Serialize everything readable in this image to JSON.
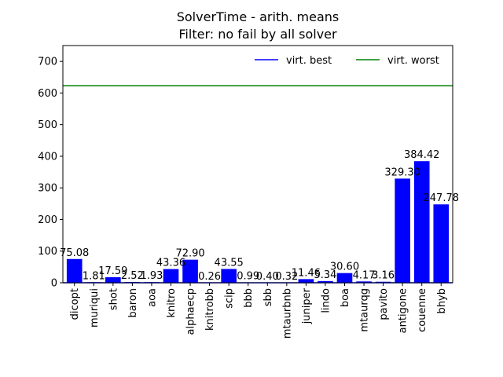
{
  "chart_data": {
    "type": "bar",
    "title": "SolverTime - arith. means",
    "subtitle": "Filter: no fail by all solver",
    "xlabel": "",
    "ylabel": "",
    "ylim": [
      0,
      750
    ],
    "yticks": [
      0,
      100,
      200,
      300,
      400,
      500,
      600,
      700
    ],
    "grid": false,
    "legend_position": "top-right",
    "categories": [
      "dicopt",
      "muriqui",
      "shot",
      "baron",
      "aoa",
      "knitro",
      "alphaecp",
      "knitrobb",
      "scip",
      "bbb",
      "sbb",
      "mtaurbnb",
      "juniper",
      "lindo",
      "boa",
      "mtaurqg",
      "pavito",
      "antigone",
      "couenne",
      "bhyb"
    ],
    "values": [
      75.08,
      1.81,
      17.59,
      2.52,
      1.93,
      43.36,
      72.9,
      0.26,
      43.55,
      0.99,
      0.4,
      0.32,
      11.46,
      5.34,
      30.6,
      4.17,
      3.16,
      329.3,
      384.42,
      247.78
    ],
    "value_labels": [
      "75.08",
      "1.81",
      "17.59",
      "2.52",
      "1.93",
      "43.36",
      "72.90",
      "0.26",
      "43.55",
      "0.99",
      "0.40",
      "0.32",
      "11.46",
      "5.34",
      "30.60",
      "4.17",
      "3.16",
      "329.30",
      "384.42",
      "247.78"
    ],
    "bar_color": "#0000ff",
    "reference_lines": [
      {
        "name": "virt. best",
        "value": 0,
        "color": "#0000ff"
      },
      {
        "name": "virt. worst",
        "value": 623,
        "color": "#008000"
      }
    ]
  }
}
